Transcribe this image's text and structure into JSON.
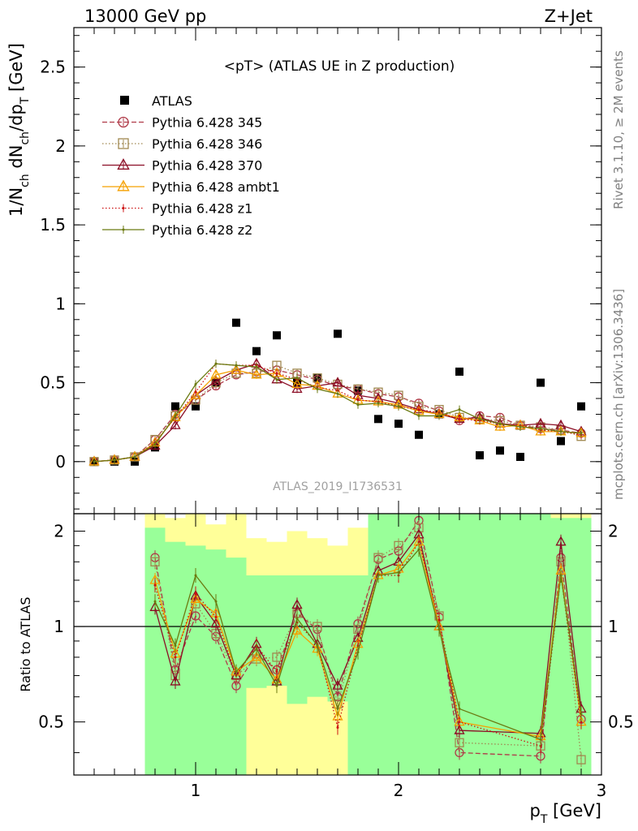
{
  "header": {
    "left": "13000 GeV pp",
    "right": "Z+Jet"
  },
  "side_labels": {
    "rivet": "Rivet 3.1.10, ≥ 2M events",
    "mcplots": "mcplots.cern.ch [arXiv:1306.3436]"
  },
  "chart_data": [
    {
      "type": "scatter",
      "title": "<pT> (ATLAS UE in Z production)",
      "xlabel": "p_T [GeV]",
      "ylabel": "1/N_ch dN_ch/dp_T [GeV]",
      "watermark": "ATLAS_2019_I1736531",
      "xlim": [
        0.4,
        3.0
      ],
      "ylim": [
        -0.33,
        2.75
      ],
      "x_ticks": [
        "1",
        "2",
        "3"
      ],
      "y_ticks": [
        "0",
        "0.5",
        "1",
        "1.5",
        "2",
        "2.5"
      ],
      "legend_position": "top-left",
      "x": [
        0.5,
        0.6,
        0.7,
        0.8,
        0.9,
        1.0,
        1.1,
        1.2,
        1.3,
        1.4,
        1.5,
        1.6,
        1.7,
        1.8,
        1.9,
        2.0,
        2.1,
        2.2,
        2.3,
        2.4,
        2.5,
        2.6,
        2.7,
        2.8,
        2.9
      ],
      "series": [
        {
          "name": "ATLAS",
          "color": "#000000",
          "style": "data",
          "values": [
            0.0,
            0.0,
            0.0,
            0.09,
            0.35,
            0.35,
            0.5,
            0.88,
            0.7,
            0.8,
            0.5,
            0.53,
            0.81,
            0.45,
            0.27,
            0.24,
            0.17,
            0.3,
            0.57,
            0.04,
            0.07,
            0.03,
            0.5,
            0.13,
            0.35
          ]
        },
        {
          "name": "Pythia 6.428 345",
          "color": "#b03a48",
          "style": "dashed",
          "marker": "circle",
          "values": [
            0.0,
            0.01,
            0.03,
            0.14,
            0.3,
            0.39,
            0.48,
            0.55,
            0.57,
            0.58,
            0.55,
            0.52,
            0.48,
            0.46,
            0.43,
            0.41,
            0.37,
            0.32,
            0.26,
            0.29,
            0.28,
            0.23,
            0.21,
            0.2,
            0.18
          ]
        },
        {
          "name": "Pythia 6.428 346",
          "color": "#a08850",
          "style": "dotted",
          "marker": "square",
          "values": [
            0.0,
            0.01,
            0.03,
            0.14,
            0.29,
            0.39,
            0.5,
            0.56,
            0.56,
            0.61,
            0.56,
            0.53,
            0.49,
            0.46,
            0.44,
            0.42,
            0.35,
            0.33,
            0.28,
            0.27,
            0.26,
            0.23,
            0.22,
            0.2,
            0.16
          ]
        },
        {
          "name": "Pythia 6.428 370",
          "color": "#8b0d25",
          "style": "solid",
          "marker": "triangle",
          "values": [
            0.0,
            0.01,
            0.03,
            0.1,
            0.23,
            0.42,
            0.51,
            0.58,
            0.62,
            0.52,
            0.46,
            0.48,
            0.5,
            0.42,
            0.4,
            0.37,
            0.33,
            0.3,
            0.27,
            0.28,
            0.24,
            0.23,
            0.24,
            0.23,
            0.19
          ]
        },
        {
          "name": "Pythia 6.428 ambt1",
          "color": "#f5a000",
          "style": "solid",
          "marker": "triangle",
          "values": [
            0.0,
            0.01,
            0.03,
            0.12,
            0.28,
            0.42,
            0.55,
            0.58,
            0.55,
            0.56,
            0.49,
            0.48,
            0.43,
            0.39,
            0.38,
            0.36,
            0.32,
            0.3,
            0.28,
            0.26,
            0.22,
            0.23,
            0.19,
            0.19,
            0.18
          ]
        },
        {
          "name": "Pythia 6.428 z1",
          "color": "#cc1010",
          "style": "dotted",
          "marker": "dot",
          "values": [
            0.0,
            0.01,
            0.03,
            0.12,
            0.28,
            0.44,
            0.62,
            0.61,
            0.61,
            0.56,
            0.52,
            0.47,
            0.45,
            0.39,
            0.38,
            0.35,
            0.33,
            0.31,
            0.27,
            0.26,
            0.24,
            0.23,
            0.2,
            0.19,
            0.17
          ]
        },
        {
          "name": "Pythia 6.428 z2",
          "color": "#6b7a10",
          "style": "solid",
          "marker": "dot",
          "values": [
            0.0,
            0.01,
            0.03,
            0.11,
            0.29,
            0.49,
            0.62,
            0.61,
            0.6,
            0.52,
            0.53,
            0.46,
            0.43,
            0.36,
            0.37,
            0.35,
            0.29,
            0.29,
            0.33,
            0.27,
            0.24,
            0.22,
            0.21,
            0.19,
            0.18
          ]
        }
      ]
    },
    {
      "type": "line",
      "ylabel": "Ratio to ATLAS",
      "xlabel": "p_T [GeV]",
      "xlim": [
        0.4,
        3.0
      ],
      "ylim": [
        0.34,
        2.27
      ],
      "y_ticks": [
        "0.5",
        "1",
        "2"
      ],
      "x": [
        0.8,
        0.9,
        1.0,
        1.1,
        1.2,
        1.3,
        1.4,
        1.5,
        1.6,
        1.7,
        1.8,
        1.9,
        2.0,
        2.1,
        2.2,
        2.3,
        2.7,
        2.8,
        2.9
      ],
      "band_inner": {
        "color": "#99ff99",
        "bins": [
          [
            0.75,
            0.85,
            0.3,
            2.05
          ],
          [
            0.85,
            0.95,
            0.3,
            1.85
          ],
          [
            0.95,
            1.05,
            0.3,
            1.8
          ],
          [
            1.05,
            1.15,
            0.3,
            1.75
          ],
          [
            1.15,
            1.25,
            0.3,
            1.65
          ],
          [
            1.25,
            1.35,
            0.64,
            1.45
          ],
          [
            1.35,
            1.45,
            0.65,
            1.45
          ],
          [
            1.45,
            1.55,
            0.57,
            1.45
          ],
          [
            1.55,
            1.65,
            0.6,
            1.45
          ],
          [
            1.65,
            1.75,
            0.58,
            1.45
          ],
          [
            1.75,
            1.85,
            0.3,
            1.45
          ],
          [
            1.85,
            1.95,
            0.3,
            2.3
          ],
          [
            1.95,
            2.05,
            0.3,
            2.3
          ],
          [
            2.05,
            2.15,
            0.3,
            2.3
          ],
          [
            2.15,
            2.25,
            0.3,
            2.3
          ],
          [
            2.25,
            2.35,
            0.3,
            2.3
          ],
          [
            2.35,
            2.65,
            0.3,
            2.3
          ],
          [
            2.65,
            2.75,
            0.3,
            2.3
          ],
          [
            2.75,
            2.85,
            0.3,
            2.2
          ],
          [
            2.85,
            2.95,
            0.3,
            2.2
          ]
        ]
      },
      "band_outer": {
        "color": "#ffff99",
        "bins": [
          [
            0.75,
            0.85,
            0.3,
            2.3
          ],
          [
            0.85,
            0.95,
            0.3,
            2.2
          ],
          [
            0.95,
            1.05,
            0.3,
            2.3
          ],
          [
            1.05,
            1.15,
            0.3,
            2.1
          ],
          [
            1.15,
            1.25,
            0.3,
            2.3
          ],
          [
            1.25,
            1.35,
            0.3,
            1.9
          ],
          [
            1.35,
            1.45,
            0.3,
            1.85
          ],
          [
            1.45,
            1.55,
            0.3,
            2.0
          ],
          [
            1.55,
            1.65,
            0.3,
            1.9
          ],
          [
            1.65,
            1.75,
            0.3,
            1.8
          ],
          [
            1.75,
            1.85,
            0.3,
            2.05
          ],
          [
            1.85,
            1.95,
            0.3,
            2.3
          ],
          [
            1.95,
            2.05,
            0.3,
            2.3
          ],
          [
            2.05,
            2.15,
            0.3,
            2.3
          ],
          [
            2.15,
            2.25,
            0.3,
            2.3
          ],
          [
            2.25,
            2.35,
            0.3,
            2.3
          ],
          [
            2.35,
            2.65,
            0.3,
            2.3
          ],
          [
            2.65,
            2.75,
            0.3,
            2.3
          ],
          [
            2.75,
            2.85,
            0.3,
            2.3
          ],
          [
            2.85,
            2.95,
            0.3,
            2.3
          ]
        ]
      },
      "series": [
        {
          "name": "Pythia 6.428 345",
          "values": [
            1.65,
            0.73,
            1.08,
            0.93,
            0.65,
            0.82,
            0.73,
            1.1,
            0.98,
            0.6,
            1.02,
            1.63,
            1.73,
            2.16,
            1.07,
            0.4,
            0.39,
            1.65,
            0.51
          ]
        },
        {
          "name": "Pythia 6.428 346",
          "values": [
            1.6,
            0.7,
            1.18,
            0.95,
            0.7,
            0.79,
            0.8,
            1.1,
            1.0,
            0.57,
            0.98,
            1.65,
            1.8,
            2.05,
            1.08,
            0.43,
            0.42,
            1.6,
            0.38
          ]
        },
        {
          "name": "Pythia 6.428 370",
          "values": [
            1.15,
            0.67,
            1.25,
            1.02,
            0.7,
            0.88,
            0.67,
            1.17,
            0.88,
            0.65,
            0.92,
            1.5,
            1.6,
            1.95,
            1.0,
            0.47,
            0.46,
            1.85,
            0.55
          ]
        },
        {
          "name": "Pythia 6.428 ambt1",
          "values": [
            1.4,
            0.82,
            1.22,
            1.1,
            0.72,
            0.8,
            0.68,
            0.97,
            0.85,
            0.52,
            0.88,
            1.45,
            1.52,
            1.85,
            1.0,
            0.5,
            0.45,
            1.5,
            0.5
          ]
        },
        {
          "name": "Pythia 6.428 z1",
          "values": [
            1.35,
            0.8,
            1.27,
            1.07,
            0.7,
            0.87,
            0.72,
            1.03,
            0.88,
            0.48,
            0.87,
            1.45,
            1.45,
            1.85,
            1.05,
            0.5,
            0.42,
            1.45,
            0.5
          ]
        },
        {
          "name": "Pythia 6.428 z2",
          "values": [
            1.2,
            0.87,
            1.45,
            1.2,
            0.72,
            0.85,
            0.65,
            1.06,
            0.87,
            0.55,
            0.83,
            1.45,
            1.48,
            1.75,
            0.98,
            0.55,
            0.44,
            1.45,
            0.53
          ]
        }
      ]
    }
  ]
}
